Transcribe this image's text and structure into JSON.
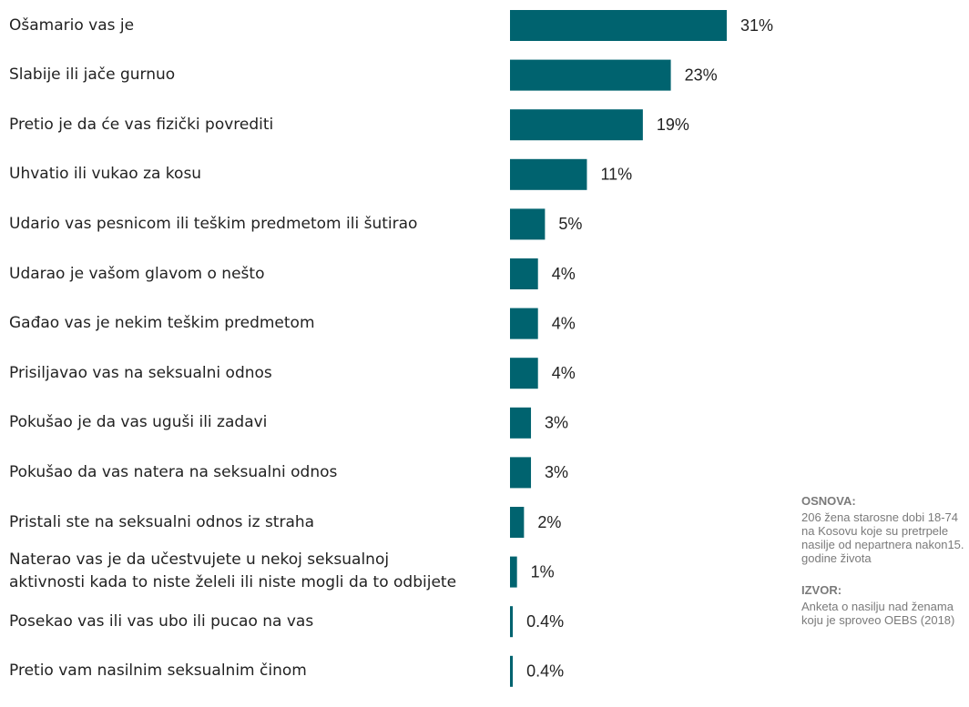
{
  "chart_data": {
    "type": "bar",
    "orientation": "horizontal",
    "color": "#00636f",
    "categories": [
      "Ošamario vas je",
      "Slabije ili jače gurnuo",
      "Pretio je da će vas fizički povrediti",
      "Uhvatio ili vukao za kosu",
      "Udario vas pesnicom ili teškim predmetom ili šutirao",
      "Udarao je vašom glavom o nešto",
      "Gađao vas  je nekim teškim predmetom",
      "Prisiljavao vas na seksualni odnos",
      "Pokušao je da vas uguši ili zadavi",
      "Pokušao da vas natera na seksualni odnos",
      "Pristali ste na seksualni odnos iz straha",
      "Naterao vas je da učestvujete u nekoj seksualnoj aktivnosti kada to niste želeli ili niste mogli da to odbijete",
      "Posekao vas ili vas ubo ili pucao na vas",
      "Pretio vam nasilnim seksualnim činom"
    ],
    "values": [
      31,
      23,
      19,
      11,
      5,
      4,
      4,
      4,
      3,
      3,
      2,
      1,
      0.4,
      0.4
    ],
    "value_labels": [
      "31%",
      "23%",
      "19%",
      "11%",
      "5%",
      "4%",
      "4%",
      "4%",
      "3%",
      "3%",
      "2%",
      "1%",
      "0.4%",
      "0.4%"
    ]
  },
  "notes": [
    {
      "heading": "OSNOVA:",
      "text": "206 žena starosne dobi 18-74 na Kosovu  koje su pretrpele nasilje od nepartnera nakon15. godine života"
    },
    {
      "heading": "IZVOR:",
      "text": "Anketa o nasilju nad ženama koju je sproveo OEBS (2018)"
    }
  ]
}
